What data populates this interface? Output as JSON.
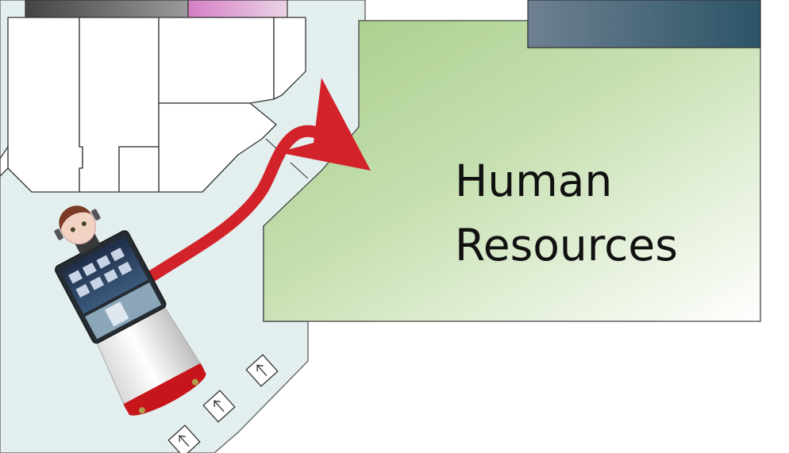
{
  "map": {
    "destination": {
      "name_line1": "Human",
      "name_line2": "Resources"
    },
    "colors": {
      "corridor": "#e3efef",
      "hr_room_start": "#a8cd8a",
      "hr_room_end": "#ffffff",
      "dark_room_start": "#6c8090",
      "dark_room_end": "#2e5467",
      "pink_room": "#dc8ccc",
      "gray_room": "#555555",
      "route_arrow": "#d2232a",
      "robot_body": "#f4f4f4",
      "robot_band": "#c9151b",
      "robot_screen": "#2a3d5a"
    },
    "icons": [
      "route-arrow",
      "robot-icon",
      "escalator-arrow-icon"
    ]
  }
}
